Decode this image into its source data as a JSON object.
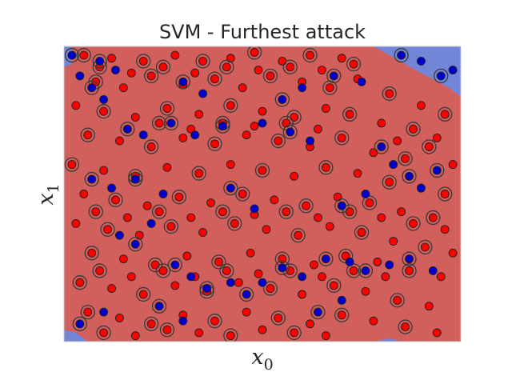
{
  "chart_data": {
    "type": "scatter",
    "title": "SVM -  Furthest attack",
    "xlabel": {
      "base": "x",
      "sub": "0"
    },
    "ylabel": {
      "base": "x",
      "sub": "1"
    },
    "xlim": [
      0,
      1
    ],
    "ylim": [
      0,
      1
    ],
    "grid": false,
    "ticks_visible": false,
    "colors": {
      "region_class_a": "#d1605c",
      "region_class_b": "#7285d6",
      "class_a": "#ff0000",
      "class_b": "#0000cc",
      "marker_edge": "#202020",
      "support_vector_ring": "#3a3a3a",
      "plot_border": "#cccccc"
    },
    "decision_regions": [
      {
        "class": "b",
        "polygon": [
          [
            0,
            1
          ],
          [
            0.02,
            1
          ],
          [
            0.02,
            0.94
          ],
          [
            0,
            0.93
          ]
        ]
      },
      {
        "class": "b",
        "polygon": [
          [
            0.78,
            1
          ],
          [
            1,
            1
          ],
          [
            1,
            0.83
          ],
          [
            0.97,
            0.86
          ],
          [
            0.9,
            0.91
          ]
        ]
      },
      {
        "class": "b",
        "polygon": [
          [
            0,
            0
          ],
          [
            0.06,
            0
          ],
          [
            0.03,
            0.03
          ],
          [
            0,
            0.04
          ]
        ]
      },
      {
        "class": "b",
        "polygon": [
          [
            0.78,
            0
          ],
          [
            0.82,
            0.01
          ],
          [
            0.85,
            0
          ]
        ]
      }
    ],
    "series": [
      {
        "class": "a",
        "points": [
          [
            0.05,
            0.97
          ],
          [
            0.12,
            0.96
          ],
          [
            0.2,
            0.95
          ],
          [
            0.28,
            0.97
          ],
          [
            0.35,
            0.95
          ],
          [
            0.42,
            0.96
          ],
          [
            0.48,
            0.98
          ],
          [
            0.55,
            0.95
          ],
          [
            0.62,
            0.97
          ],
          [
            0.7,
            0.96
          ],
          [
            0.08,
            0.88
          ],
          [
            0.15,
            0.86
          ],
          [
            0.22,
            0.9
          ],
          [
            0.3,
            0.87
          ],
          [
            0.38,
            0.89
          ],
          [
            0.45,
            0.86
          ],
          [
            0.52,
            0.9
          ],
          [
            0.6,
            0.88
          ],
          [
            0.67,
            0.86
          ],
          [
            0.74,
            0.89
          ],
          [
            0.82,
            0.84
          ],
          [
            0.9,
            0.8
          ],
          [
            0.96,
            0.77
          ],
          [
            0.03,
            0.8
          ],
          [
            0.1,
            0.78
          ],
          [
            0.18,
            0.76
          ],
          [
            0.26,
            0.79
          ],
          [
            0.34,
            0.77
          ],
          [
            0.42,
            0.8
          ],
          [
            0.5,
            0.78
          ],
          [
            0.58,
            0.76
          ],
          [
            0.66,
            0.79
          ],
          [
            0.72,
            0.77
          ],
          [
            0.8,
            0.74
          ],
          [
            0.88,
            0.72
          ],
          [
            0.94,
            0.69
          ],
          [
            0.06,
            0.7
          ],
          [
            0.14,
            0.68
          ],
          [
            0.22,
            0.66
          ],
          [
            0.3,
            0.69
          ],
          [
            0.38,
            0.67
          ],
          [
            0.46,
            0.7
          ],
          [
            0.54,
            0.68
          ],
          [
            0.62,
            0.66
          ],
          [
            0.7,
            0.69
          ],
          [
            0.78,
            0.64
          ],
          [
            0.86,
            0.62
          ],
          [
            0.98,
            0.6
          ],
          [
            0.02,
            0.6
          ],
          [
            0.1,
            0.58
          ],
          [
            0.18,
            0.56
          ],
          [
            0.26,
            0.59
          ],
          [
            0.34,
            0.57
          ],
          [
            0.42,
            0.6
          ],
          [
            0.5,
            0.58
          ],
          [
            0.58,
            0.56
          ],
          [
            0.66,
            0.59
          ],
          [
            0.74,
            0.57
          ],
          [
            0.82,
            0.54
          ],
          [
            0.9,
            0.52
          ],
          [
            0.96,
            0.5
          ],
          [
            0.05,
            0.5
          ],
          [
            0.13,
            0.48
          ],
          [
            0.21,
            0.46
          ],
          [
            0.29,
            0.49
          ],
          [
            0.37,
            0.47
          ],
          [
            0.45,
            0.5
          ],
          [
            0.53,
            0.48
          ],
          [
            0.61,
            0.46
          ],
          [
            0.69,
            0.49
          ],
          [
            0.77,
            0.47
          ],
          [
            0.85,
            0.44
          ],
          [
            0.93,
            0.42
          ],
          [
            0.03,
            0.4
          ],
          [
            0.11,
            0.38
          ],
          [
            0.19,
            0.36
          ],
          [
            0.27,
            0.39
          ],
          [
            0.35,
            0.37
          ],
          [
            0.43,
            0.4
          ],
          [
            0.51,
            0.38
          ],
          [
            0.59,
            0.36
          ],
          [
            0.67,
            0.39
          ],
          [
            0.75,
            0.37
          ],
          [
            0.83,
            0.34
          ],
          [
            0.91,
            0.32
          ],
          [
            0.98,
            0.3
          ],
          [
            0.07,
            0.3
          ],
          [
            0.15,
            0.28
          ],
          [
            0.23,
            0.26
          ],
          [
            0.31,
            0.29
          ],
          [
            0.39,
            0.27
          ],
          [
            0.47,
            0.3
          ],
          [
            0.55,
            0.28
          ],
          [
            0.63,
            0.26
          ],
          [
            0.71,
            0.29
          ],
          [
            0.79,
            0.27
          ],
          [
            0.87,
            0.24
          ],
          [
            0.95,
            0.22
          ],
          [
            0.04,
            0.2
          ],
          [
            0.12,
            0.18
          ],
          [
            0.2,
            0.16
          ],
          [
            0.28,
            0.19
          ],
          [
            0.36,
            0.17
          ],
          [
            0.44,
            0.2
          ],
          [
            0.52,
            0.18
          ],
          [
            0.6,
            0.16
          ],
          [
            0.68,
            0.19
          ],
          [
            0.76,
            0.17
          ],
          [
            0.84,
            0.14
          ],
          [
            0.92,
            0.12
          ],
          [
            0.06,
            0.1
          ],
          [
            0.14,
            0.08
          ],
          [
            0.22,
            0.06
          ],
          [
            0.3,
            0.09
          ],
          [
            0.38,
            0.07
          ],
          [
            0.46,
            0.1
          ],
          [
            0.54,
            0.08
          ],
          [
            0.62,
            0.06
          ],
          [
            0.7,
            0.09
          ],
          [
            0.78,
            0.07
          ],
          [
            0.86,
            0.05
          ],
          [
            0.94,
            0.03
          ],
          [
            0.1,
            0.03
          ],
          [
            0.18,
            0.02
          ],
          [
            0.26,
            0.04
          ],
          [
            0.34,
            0.03
          ],
          [
            0.42,
            0.02
          ],
          [
            0.5,
            0.04
          ],
          [
            0.58,
            0.03
          ],
          [
            0.66,
            0.02
          ],
          [
            0.09,
            0.93
          ],
          [
            0.17,
            0.91
          ],
          [
            0.25,
            0.93
          ],
          [
            0.33,
            0.91
          ],
          [
            0.41,
            0.93
          ],
          [
            0.49,
            0.92
          ],
          [
            0.57,
            0.93
          ],
          [
            0.65,
            0.92
          ],
          [
            0.73,
            0.94
          ],
          [
            0.16,
            0.72
          ],
          [
            0.24,
            0.74
          ],
          [
            0.32,
            0.72
          ],
          [
            0.4,
            0.74
          ],
          [
            0.48,
            0.73
          ],
          [
            0.56,
            0.74
          ],
          [
            0.64,
            0.72
          ],
          [
            0.92,
            0.66
          ],
          [
            0.84,
            0.68
          ],
          [
            0.08,
            0.44
          ],
          [
            0.16,
            0.42
          ],
          [
            0.24,
            0.44
          ],
          [
            0.32,
            0.42
          ],
          [
            0.4,
            0.44
          ],
          [
            0.48,
            0.43
          ],
          [
            0.56,
            0.44
          ],
          [
            0.64,
            0.42
          ],
          [
            0.72,
            0.44
          ],
          [
            0.8,
            0.42
          ],
          [
            0.88,
            0.4
          ],
          [
            0.96,
            0.38
          ],
          [
            0.09,
            0.24
          ],
          [
            0.17,
            0.22
          ],
          [
            0.25,
            0.24
          ],
          [
            0.33,
            0.22
          ],
          [
            0.41,
            0.24
          ],
          [
            0.49,
            0.23
          ],
          [
            0.57,
            0.24
          ],
          [
            0.65,
            0.22
          ],
          [
            0.73,
            0.24
          ],
          [
            0.81,
            0.22
          ]
        ]
      },
      {
        "class": "b",
        "points": [
          [
            0.02,
            0.97
          ],
          [
            0.04,
            0.9
          ],
          [
            0.09,
            0.95
          ],
          [
            0.13,
            0.92
          ],
          [
            0.07,
            0.86
          ],
          [
            0.1,
            0.82
          ],
          [
            0.85,
            0.97
          ],
          [
            0.9,
            0.95
          ],
          [
            0.95,
            0.9
          ],
          [
            0.98,
            0.92
          ],
          [
            0.16,
            0.72
          ],
          [
            0.2,
            0.7
          ],
          [
            0.27,
            0.74
          ],
          [
            0.33,
            0.7
          ],
          [
            0.4,
            0.73
          ],
          [
            0.5,
            0.74
          ],
          [
            0.57,
            0.71
          ],
          [
            0.62,
            0.68
          ],
          [
            0.07,
            0.55
          ],
          [
            0.12,
            0.52
          ],
          [
            0.18,
            0.55
          ],
          [
            0.25,
            0.5
          ],
          [
            0.8,
            0.66
          ],
          [
            0.83,
            0.6
          ],
          [
            0.87,
            0.56
          ],
          [
            0.9,
            0.52
          ],
          [
            0.94,
            0.58
          ],
          [
            0.14,
            0.36
          ],
          [
            0.18,
            0.33
          ],
          [
            0.22,
            0.4
          ],
          [
            0.28,
            0.26
          ],
          [
            0.32,
            0.22
          ],
          [
            0.36,
            0.18
          ],
          [
            0.42,
            0.2
          ],
          [
            0.46,
            0.16
          ],
          [
            0.5,
            0.2
          ],
          [
            0.55,
            0.25
          ],
          [
            0.6,
            0.22
          ],
          [
            0.66,
            0.28
          ],
          [
            0.72,
            0.27
          ],
          [
            0.76,
            0.24
          ],
          [
            0.82,
            0.26
          ],
          [
            0.87,
            0.28
          ],
          [
            0.93,
            0.24
          ],
          [
            0.04,
            0.06
          ],
          [
            0.1,
            0.1
          ],
          [
            0.42,
            0.52
          ],
          [
            0.48,
            0.45
          ],
          [
            0.7,
            0.46
          ],
          [
            0.76,
            0.5
          ],
          [
            0.3,
            0.88
          ],
          [
            0.35,
            0.84
          ],
          [
            0.55,
            0.82
          ],
          [
            0.6,
            0.86
          ],
          [
            0.68,
            0.9
          ],
          [
            0.75,
            0.88
          ],
          [
            0.24,
            0.12
          ],
          [
            0.3,
            0.07
          ],
          [
            0.64,
            0.1
          ],
          [
            0.7,
            0.14
          ]
        ]
      }
    ]
  }
}
